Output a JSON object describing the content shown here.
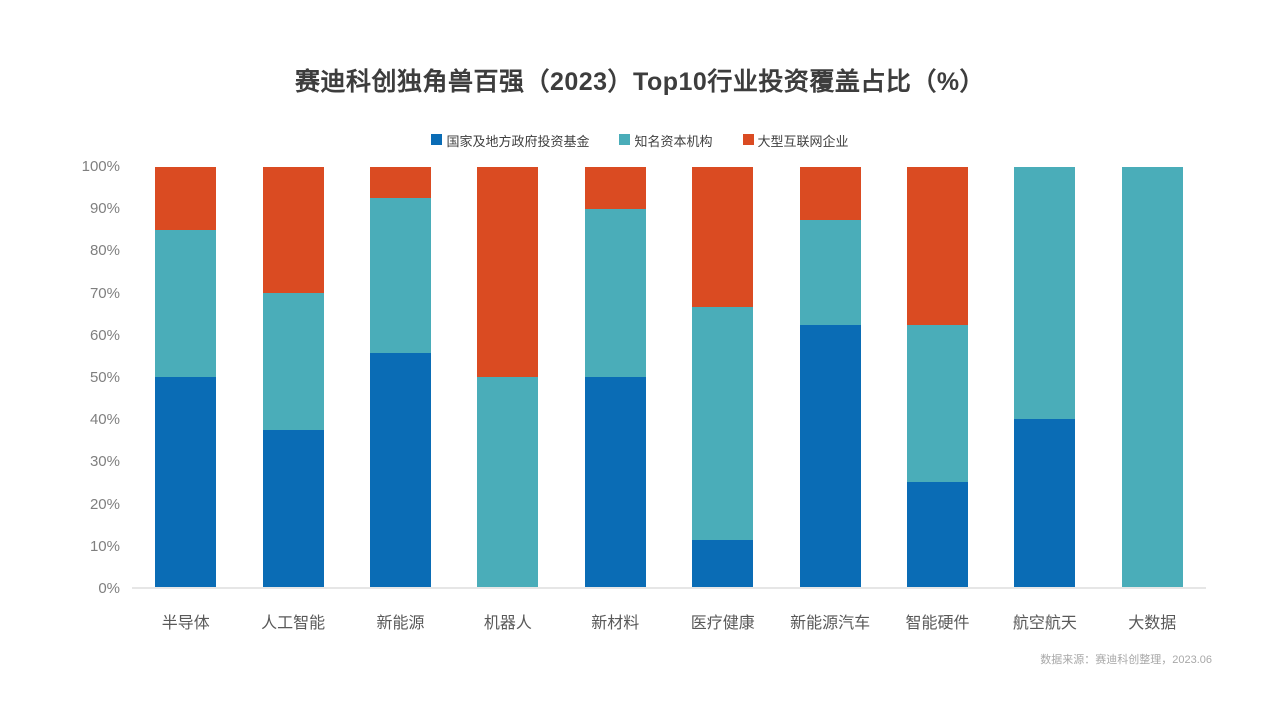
{
  "title": "赛迪科创独角兽百强（2023）Top10行业投资覆盖占比（%）",
  "source_note": "数据来源：赛迪科创整理，2023.06",
  "colors": {
    "gov_fund_blue": "#0a6cb5",
    "capital_teal": "#4aadb9",
    "internet_orange": "#da4b22",
    "axis_line": "#e6e6e6"
  },
  "legend": [
    {
      "label": "国家及地方政府投资基金",
      "color": "#0a6cb5"
    },
    {
      "label": "知名资本机构",
      "color": "#4aadb9"
    },
    {
      "label": "大型互联网企业",
      "color": "#da4b22"
    }
  ],
  "chart_data": {
    "type": "bar",
    "stacked": true,
    "title": "赛迪科创独角兽百强（2023）Top10行业投资覆盖占比（%）",
    "xlabel": "",
    "ylabel": "",
    "ylim": [
      0,
      100
    ],
    "yticks": [
      "0%",
      "10%",
      "20%",
      "30%",
      "40%",
      "50%",
      "60%",
      "70%",
      "80%",
      "90%",
      "100%"
    ],
    "grid": false,
    "legend_position": "top",
    "categories": [
      "半导体",
      "人工智能",
      "新能源",
      "机器人",
      "新材料",
      "医疗健康",
      "新能源汽车",
      "智能硬件",
      "航空航天",
      "大数据"
    ],
    "series": [
      {
        "name": "国家及地方政府投资基金",
        "color": "#0a6cb5",
        "values": [
          50,
          37.5,
          55.6,
          0,
          50,
          11.1,
          62.5,
          25,
          40,
          0
        ]
      },
      {
        "name": "知名资本机构",
        "color": "#4aadb9",
        "values": [
          35,
          32.5,
          37.0,
          50,
          40,
          55.6,
          25,
          37.5,
          60,
          100
        ]
      },
      {
        "name": "大型互联网企业",
        "color": "#da4b22",
        "values": [
          15,
          30,
          7.4,
          50,
          10,
          33.3,
          12.5,
          37.5,
          0,
          0
        ]
      }
    ]
  }
}
